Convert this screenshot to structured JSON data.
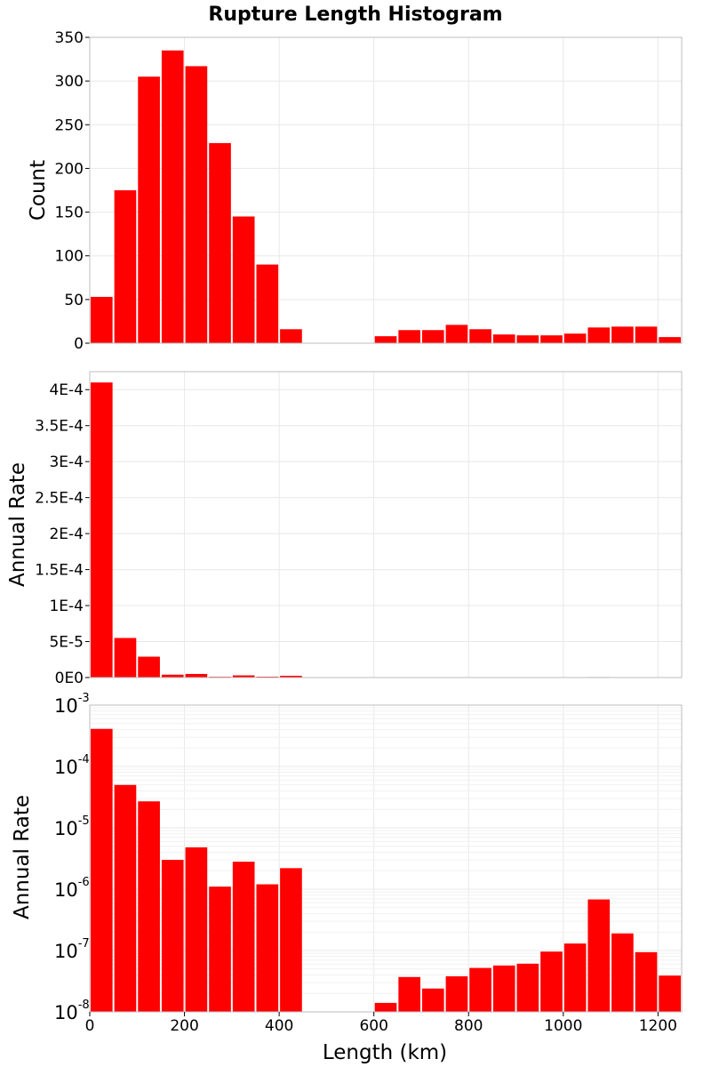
{
  "chart_data": [
    {
      "type": "bar",
      "title": "Rupture Length Histogram",
      "ylabel": "Count",
      "xlabel": "",
      "xlim": [
        0,
        1250
      ],
      "ylim": [
        0,
        350
      ],
      "bin_width": 50,
      "bin_starts": [
        0,
        50,
        100,
        150,
        200,
        250,
        300,
        350,
        400,
        450,
        500,
        550,
        600,
        650,
        700,
        750,
        800,
        850,
        900,
        950,
        1000,
        1050,
        1100,
        1150,
        1200
      ],
      "values": [
        53,
        175,
        305,
        335,
        317,
        229,
        145,
        90,
        16,
        0,
        0,
        0,
        8,
        15,
        15,
        21,
        16,
        10,
        9,
        9,
        11,
        18,
        19,
        19,
        7
      ],
      "yticks": [
        0,
        50,
        100,
        150,
        200,
        250,
        300,
        350
      ],
      "ytick_labels": [
        "0",
        "50",
        "100",
        "150",
        "200",
        "250",
        "300",
        "350"
      ]
    },
    {
      "type": "bar",
      "ylabel": "Annual Rate",
      "xlabel": "",
      "xlim": [
        0,
        1250
      ],
      "ylim": [
        0,
        0.000425
      ],
      "bin_width": 50,
      "bin_starts": [
        0,
        50,
        100,
        150,
        200,
        250,
        300,
        350,
        400,
        450,
        500,
        550,
        600,
        650,
        700,
        750,
        800,
        850,
        900,
        950,
        1000,
        1050,
        1100,
        1150,
        1200
      ],
      "values": [
        0.00041,
        5.5e-05,
        2.9e-05,
        4e-06,
        5e-06,
        1.1e-06,
        3e-06,
        1.2e-06,
        2.4e-06,
        0,
        0,
        0,
        1.3e-08,
        3.7e-08,
        2.4e-08,
        3.7e-08,
        5.2e-08,
        5.7e-08,
        6.1e-08,
        9.6e-08,
        1.3e-07,
        6.8e-07,
        2e-07,
        9.5e-08,
        4e-08
      ],
      "yticks": [
        0,
        5e-05,
        0.0001,
        0.00015,
        0.0002,
        0.00025,
        0.0003,
        0.00035,
        0.0004
      ],
      "ytick_labels": [
        "0E0",
        "5E-5",
        "1E-4",
        "1.5E-4",
        "2E-4",
        "2.5E-4",
        "3E-4",
        "3.5E-4",
        "4E-4"
      ]
    },
    {
      "type": "bar",
      "yscale": "log",
      "ylabel": "Annual Rate",
      "xlabel": "Length (km)",
      "xlim": [
        0,
        1250
      ],
      "ylim": [
        1e-08,
        0.001
      ],
      "bin_width": 50,
      "bin_starts": [
        0,
        50,
        100,
        150,
        200,
        250,
        300,
        350,
        400,
        450,
        500,
        550,
        600,
        650,
        700,
        750,
        800,
        850,
        900,
        950,
        1000,
        1050,
        1100,
        1150,
        1200
      ],
      "values": [
        0.00041,
        5e-05,
        2.7e-05,
        3e-06,
        4.8e-06,
        1.1e-06,
        2.8e-06,
        1.2e-06,
        2.2e-06,
        0,
        0,
        0,
        1.4e-08,
        3.7e-08,
        2.4e-08,
        3.8e-08,
        5.2e-08,
        5.7e-08,
        6.1e-08,
        9.6e-08,
        1.3e-07,
        6.8e-07,
        1.9e-07,
        9.4e-08,
        3.9e-08
      ],
      "ytick_exponents": [
        "-8",
        "-7",
        "-6",
        "-5",
        "-4",
        "-3"
      ],
      "ytick_base": "10",
      "xticks": [
        0,
        200,
        400,
        600,
        800,
        1000,
        1200
      ],
      "xtick_labels": [
        "0",
        "200",
        "400",
        "600",
        "800",
        "1000",
        "1200"
      ]
    }
  ],
  "colors": {
    "bar": "#ff0000",
    "frame": "#bdbdbd",
    "grid": "#e8e8e8"
  }
}
